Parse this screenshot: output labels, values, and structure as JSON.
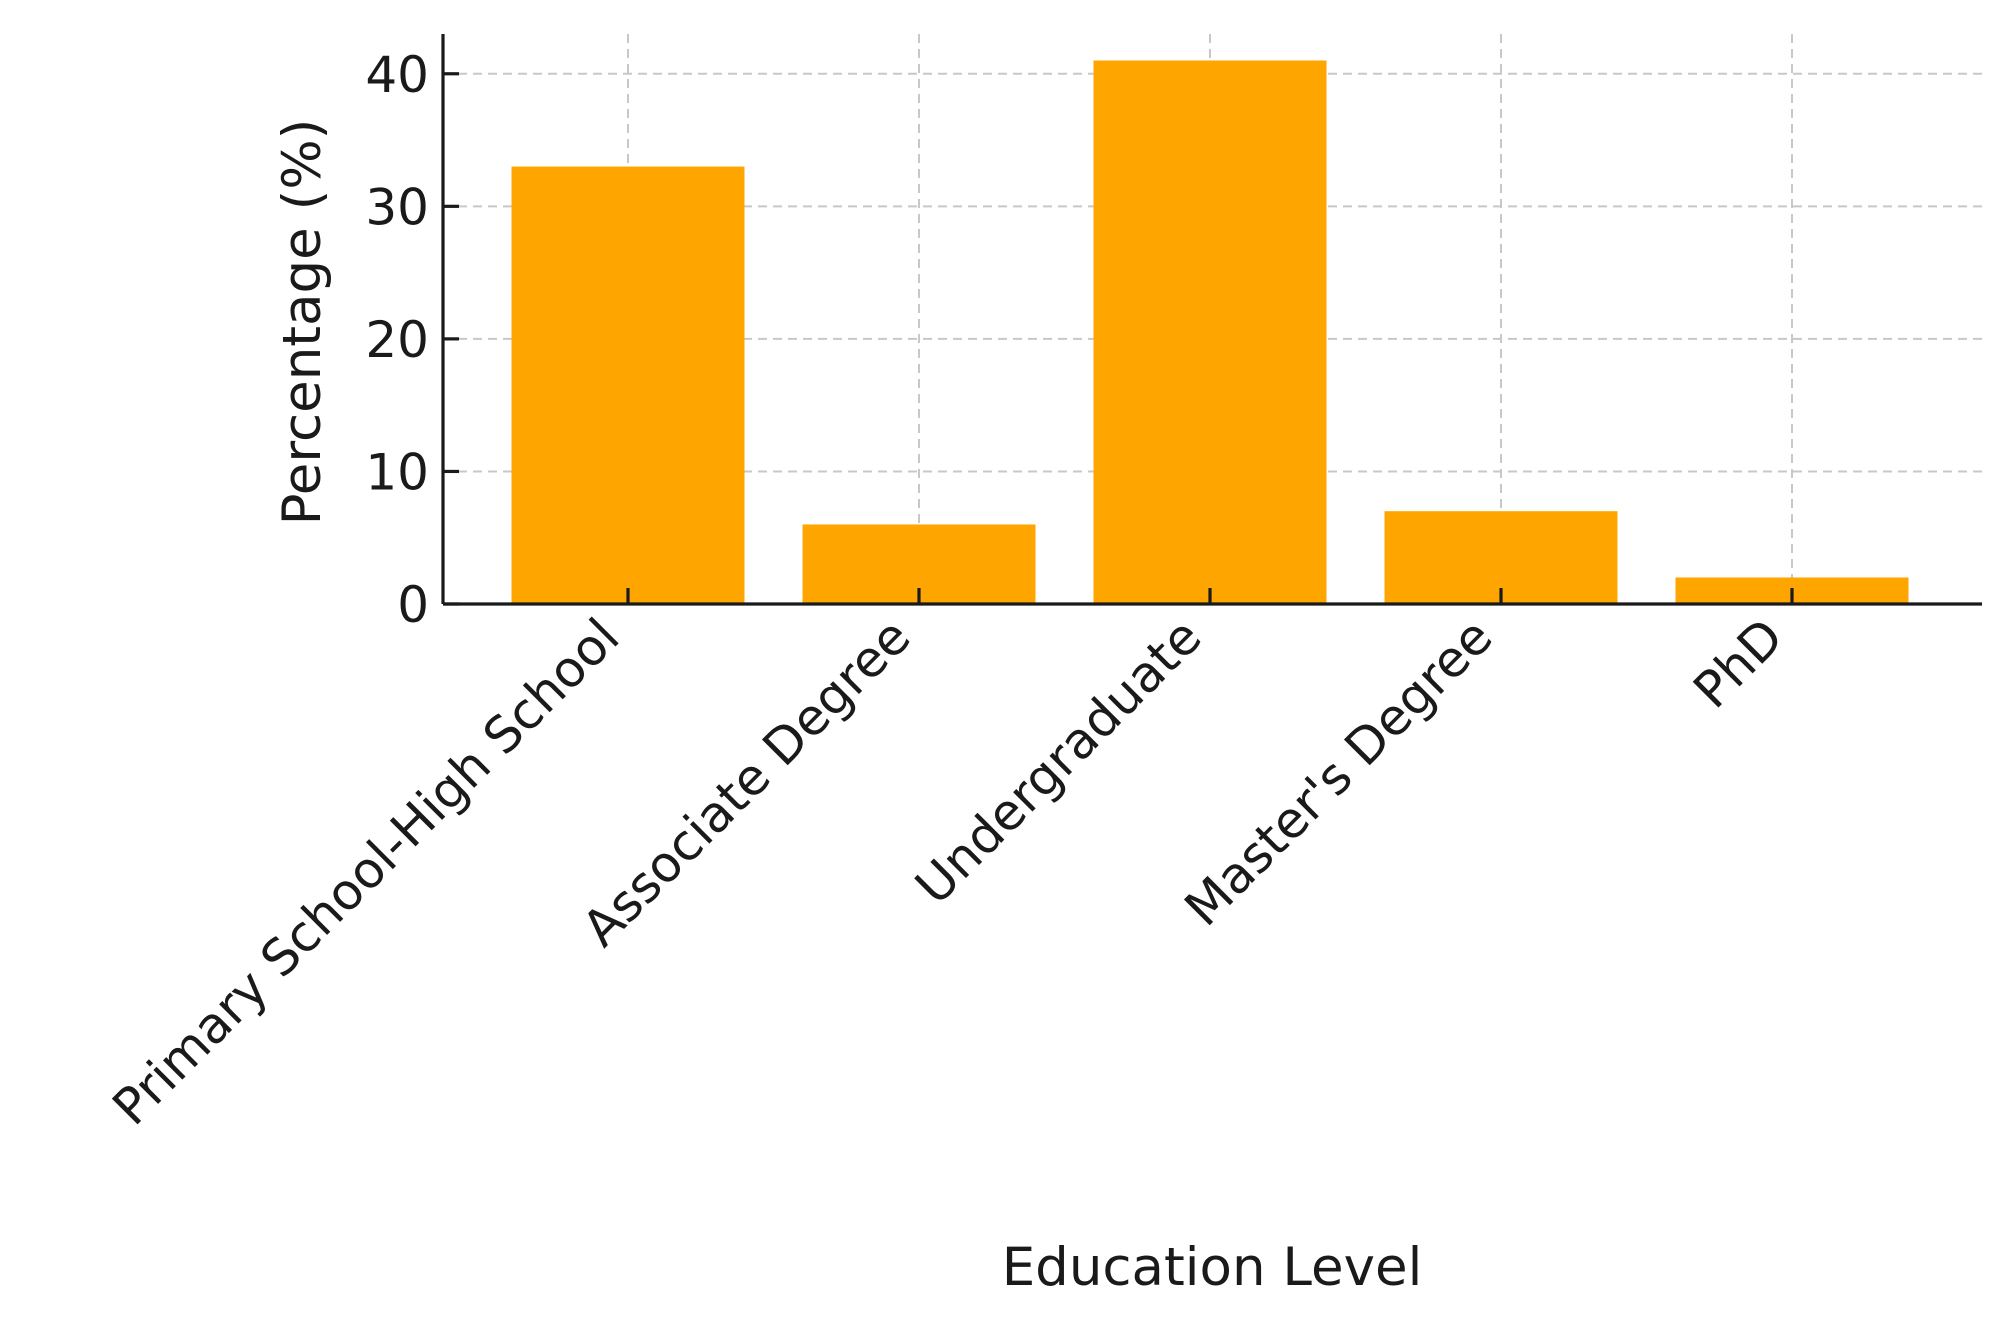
{
  "chart_data": {
    "type": "bar",
    "title": "",
    "xlabel": "Education Level",
    "ylabel": "Percentage (%)",
    "categories": [
      "Primary School-High School",
      "Associate Degree",
      "Undergraduate",
      "Master's Degree",
      "PhD"
    ],
    "values": [
      33,
      6,
      41,
      7,
      2
    ],
    "ylim": [
      0,
      43
    ],
    "yticks": [
      0,
      10,
      20,
      30,
      40
    ],
    "grid": true,
    "legend": "none",
    "bar_color": "#FFA500"
  }
}
